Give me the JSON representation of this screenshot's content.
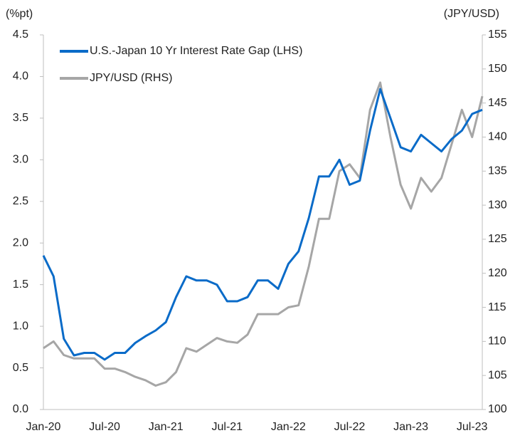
{
  "chart_data": {
    "type": "line",
    "ylabel": "(%pt)",
    "y2label": "(JPY/USD)",
    "categories": [
      "Jan-20",
      null,
      null,
      null,
      null,
      null,
      "Jul-20",
      null,
      null,
      null,
      null,
      null,
      "Jan-21",
      null,
      null,
      null,
      null,
      null,
      "Jul-21",
      null,
      null,
      null,
      null,
      null,
      "Jan-22",
      null,
      null,
      null,
      null,
      null,
      "Jul-22",
      null,
      null,
      null,
      null,
      null,
      "Jan-23",
      null,
      null,
      null,
      null,
      null,
      "Jul-23",
      null
    ],
    "series": [
      {
        "name": "U.S.-Japan 10 Yr Interest Rate Gap (LHS)",
        "color": "#0a6bc8",
        "axis": "y",
        "values": [
          1.85,
          1.6,
          0.85,
          0.65,
          0.68,
          0.68,
          0.6,
          0.68,
          0.68,
          0.8,
          0.88,
          0.95,
          1.05,
          1.35,
          1.6,
          1.55,
          1.55,
          1.5,
          1.3,
          1.3,
          1.35,
          1.55,
          1.55,
          1.45,
          1.75,
          1.9,
          2.3,
          2.8,
          2.8,
          3.0,
          2.7,
          2.75,
          3.35,
          3.85,
          3.5,
          3.15,
          3.1,
          3.3,
          3.2,
          3.1,
          3.25,
          3.35,
          3.55,
          3.6
        ]
      },
      {
        "name": "JPY/USD (RHS)",
        "color": "#a6a6a6",
        "axis": "y2",
        "values": [
          109,
          110,
          108,
          107.5,
          107.5,
          107.5,
          106,
          106,
          105.5,
          104.8,
          104.3,
          103.5,
          104,
          105.5,
          109,
          108.5,
          109.5,
          110.5,
          110,
          109.8,
          111,
          114,
          114,
          114,
          115,
          115.3,
          121,
          128,
          128,
          135,
          136,
          134,
          144,
          148,
          140,
          133,
          129.5,
          134,
          132,
          134,
          139,
          144,
          140,
          146
        ]
      }
    ],
    "ylim": [
      0,
      4.5
    ],
    "yticks": [
      {
        "value": 0,
        "label": "0.0"
      },
      0.5,
      {
        "value": 1,
        "label": "1.0"
      },
      1.5,
      {
        "value": 2,
        "label": "2.0"
      },
      2.5,
      {
        "value": 3,
        "label": "3.0"
      },
      3.5,
      {
        "value": 4,
        "label": "4.0"
      },
      4.5
    ],
    "y2lim": [
      100,
      155
    ],
    "y2ticks": [
      100,
      105,
      110,
      115,
      120,
      125,
      130,
      135,
      140,
      145,
      150,
      155
    ],
    "legend": "upper left"
  }
}
